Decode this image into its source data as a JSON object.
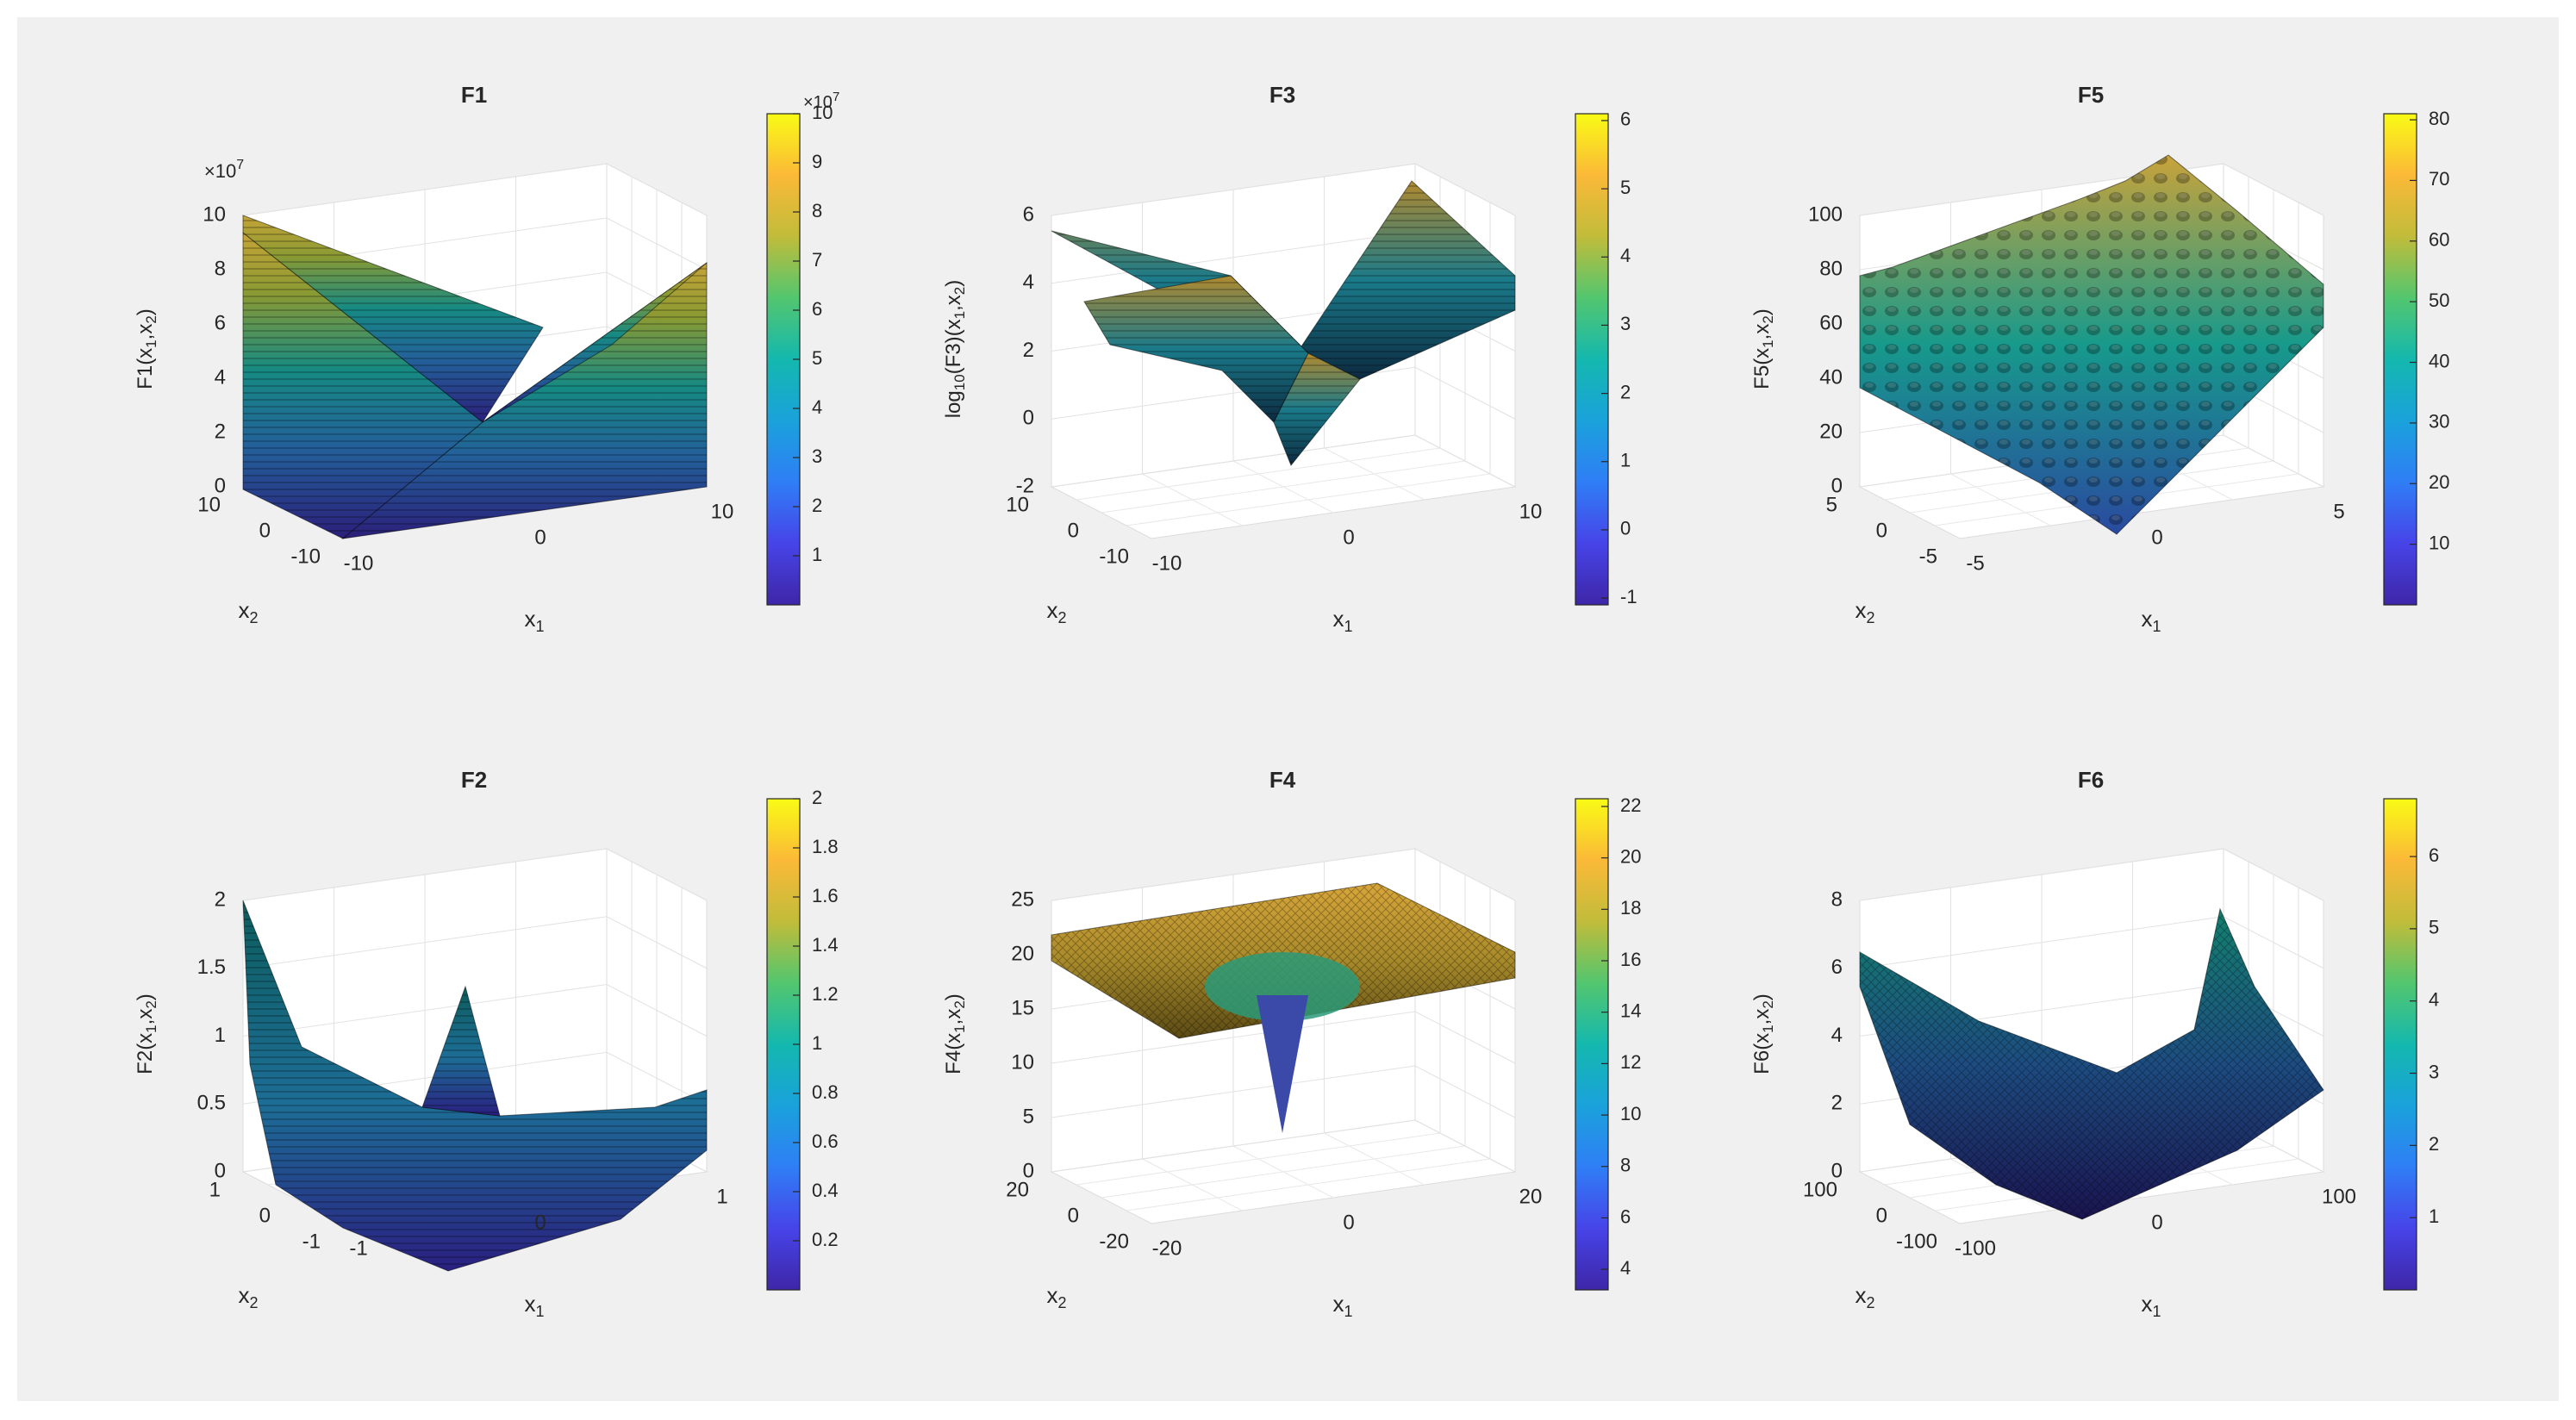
{
  "figure": {
    "background": "#f0f0f0"
  },
  "chart_data": [
    {
      "type": "surface",
      "title": "F1",
      "zlabel": {
        "base": "F1(x",
        "sub1": "1",
        "mid": ",x",
        "sub2": "2",
        "end": ")"
      },
      "xlabel": "x",
      "xlabel_sub": "1",
      "ylabel": "x",
      "ylabel_sub": "2",
      "x_ticks": [
        "-10",
        "0",
        "10"
      ],
      "y_ticks": [
        "-10",
        "0",
        "10"
      ],
      "z_ticks": [
        "0",
        "2",
        "4",
        "6",
        "8",
        "10"
      ],
      "z_exponent": "×10",
      "z_exponent_power": "7",
      "zlim": [
        0,
        10
      ],
      "colorbar": {
        "ticks": [
          "1",
          "2",
          "3",
          "4",
          "5",
          "6",
          "7",
          "8",
          "9",
          "10"
        ],
        "min": 0,
        "max": 10,
        "exponent": "×10",
        "exponent_power": "7"
      }
    },
    {
      "type": "surface",
      "title": "F3",
      "zlabel": {
        "base": "log",
        "sub0": "10",
        "mid0": "(F3)(x",
        "sub1": "1",
        "mid": ",x",
        "sub2": "2",
        "end": ")"
      },
      "xlabel": "x",
      "xlabel_sub": "1",
      "ylabel": "x",
      "ylabel_sub": "2",
      "x_ticks": [
        "-10",
        "0",
        "10"
      ],
      "y_ticks": [
        "-10",
        "0",
        "10"
      ],
      "z_ticks": [
        "-2",
        "0",
        "2",
        "4",
        "6"
      ],
      "zlim": [
        -2,
        6
      ],
      "colorbar": {
        "ticks": [
          "-1",
          "0",
          "1",
          "2",
          "3",
          "4",
          "5",
          "6"
        ],
        "min": -1.1,
        "max": 6.1
      }
    },
    {
      "type": "surface",
      "title": "F5",
      "zlabel": {
        "base": "F5(x",
        "sub1": "1",
        "mid": ",x",
        "sub2": "2",
        "end": ")"
      },
      "xlabel": "x",
      "xlabel_sub": "1",
      "ylabel": "x",
      "ylabel_sub": "2",
      "x_ticks": [
        "-5",
        "0",
        "5"
      ],
      "y_ticks": [
        "-5",
        "0",
        "5"
      ],
      "z_ticks": [
        "0",
        "20",
        "40",
        "60",
        "80",
        "100"
      ],
      "zlim": [
        0,
        100
      ],
      "colorbar": {
        "ticks": [
          "10",
          "20",
          "30",
          "40",
          "50",
          "60",
          "70",
          "80"
        ],
        "min": 0,
        "max": 81
      }
    },
    {
      "type": "surface",
      "title": "F2",
      "zlabel": {
        "base": "F2(x",
        "sub1": "1",
        "mid": ",x",
        "sub2": "2",
        "end": ")"
      },
      "xlabel": "x",
      "xlabel_sub": "1",
      "ylabel": "x",
      "ylabel_sub": "2",
      "x_ticks": [
        "-1",
        "0",
        "1"
      ],
      "y_ticks": [
        "-1",
        "0",
        "1"
      ],
      "z_ticks": [
        "0",
        "0.5",
        "1",
        "1.5",
        "2"
      ],
      "zlim": [
        0,
        2
      ],
      "colorbar": {
        "ticks": [
          "0.2",
          "0.4",
          "0.6",
          "0.8",
          "1",
          "1.2",
          "1.4",
          "1.6",
          "1.8",
          "2"
        ],
        "min": 0,
        "max": 2
      }
    },
    {
      "type": "surface",
      "title": "F4",
      "zlabel": {
        "base": "F4(x",
        "sub1": "1",
        "mid": ",x",
        "sub2": "2",
        "end": ")"
      },
      "xlabel": "x",
      "xlabel_sub": "1",
      "ylabel": "x",
      "ylabel_sub": "2",
      "x_ticks": [
        "-20",
        "0",
        "20"
      ],
      "y_ticks": [
        "-20",
        "0",
        "20"
      ],
      "z_ticks": [
        "0",
        "5",
        "10",
        "15",
        "20",
        "25"
      ],
      "zlim": [
        0,
        25
      ],
      "colorbar": {
        "ticks": [
          "4",
          "6",
          "8",
          "10",
          "12",
          "14",
          "16",
          "18",
          "20",
          "22"
        ],
        "min": 3.2,
        "max": 22.3
      }
    },
    {
      "type": "surface",
      "title": "F6",
      "zlabel": {
        "base": "F6(x",
        "sub1": "1",
        "mid": ",x",
        "sub2": "2",
        "end": ")"
      },
      "xlabel": "x",
      "xlabel_sub": "1",
      "ylabel": "x",
      "ylabel_sub": "2",
      "x_ticks": [
        "-100",
        "0",
        "100"
      ],
      "y_ticks": [
        "-100",
        "0",
        "100"
      ],
      "z_ticks": [
        "0",
        "2",
        "4",
        "6",
        "8"
      ],
      "zlim": [
        0,
        8
      ],
      "colorbar": {
        "ticks": [
          "1",
          "2",
          "3",
          "4",
          "5",
          "6"
        ],
        "min": 0,
        "max": 6.8
      }
    }
  ]
}
